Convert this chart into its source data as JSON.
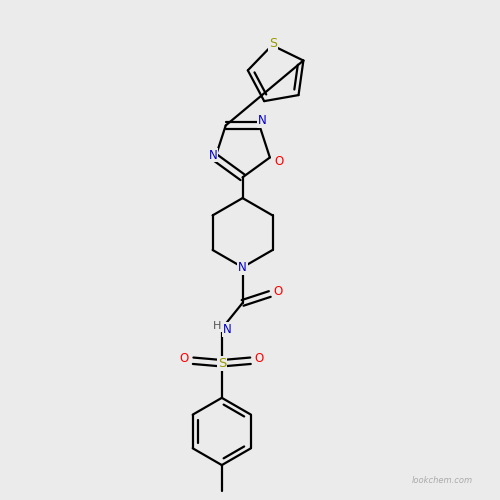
{
  "background_color": "#ebebeb",
  "bond_color": "#000000",
  "atom_colors": {
    "N": "#0000cc",
    "O": "#ff0000",
    "S_thio": "#999900",
    "S_sulf": "#999900",
    "H": "#000000",
    "C": "#000000"
  },
  "watermark": "lookchem.com"
}
